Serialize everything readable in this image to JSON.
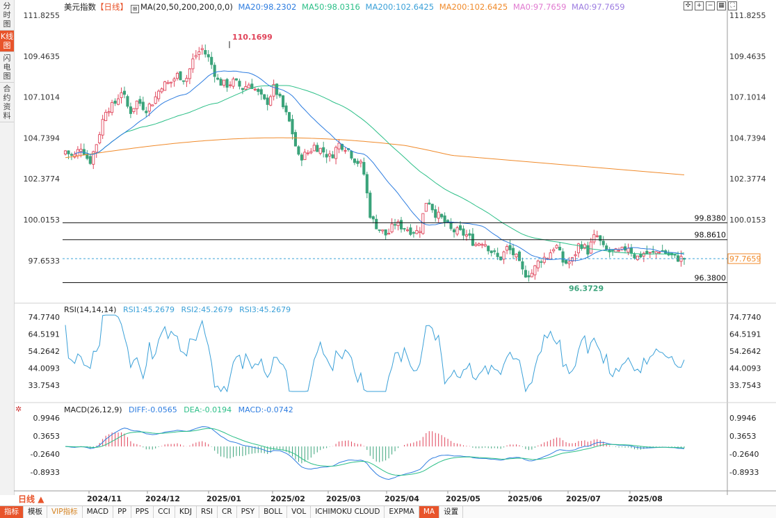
{
  "side_tabs": [
    "分时图",
    "K线图",
    "闪电图",
    "合约资料"
  ],
  "header": {
    "symbol": "美元指数",
    "period": "【日线】",
    "ma_params": "MA(20,50,200,200,0,0)",
    "ma20": "MA20:98.2302",
    "ma50": "MA50:98.0316",
    "ma200": "MA200:102.6425",
    "ma200b": "MA200:102.6425",
    "ma0a": "MA0:97.7659",
    "ma0b": "MA0:97.7659"
  },
  "colors": {
    "up": "#e0445a",
    "down": "#3aa37a",
    "ma20": "#2e7de0",
    "ma50": "#2bbf87",
    "ma200": "#f08a2a",
    "ma0a": "#e07ad0",
    "ma0b": "#9b7be0",
    "rsi": "#3aa0d8",
    "diff": "#2e7de0",
    "dea": "#2bbf87",
    "price_tag": "#f08a2a"
  },
  "price_axis_ticks": [
    "111.8255",
    "109.4635",
    "107.1014",
    "104.7394",
    "102.3774",
    "100.0153",
    "97.6533"
  ],
  "price_axis_values": [
    111.8255,
    109.4635,
    107.1014,
    104.7394,
    102.3774,
    100.0153,
    97.6533
  ],
  "annotations": {
    "high_label": "110.1699",
    "low_label": "96.3729",
    "line1_label": "99.8380",
    "line2_label": "98.8610",
    "line3_label": "96.3800",
    "last_price_tag": "97.7659"
  },
  "rsi": {
    "title": "RSI(14,14,14)",
    "rsi1": "RSI1:45.2679",
    "rsi2": "RSI2:45.2679",
    "rsi3": "RSI3:45.2679",
    "ticks": [
      "74.7740",
      "64.5191",
      "54.2642",
      "44.0093",
      "33.7543"
    ],
    "tick_values": [
      74.774,
      64.5191,
      54.2642,
      44.0093,
      33.7543
    ]
  },
  "macd": {
    "title": "MACD(26,12,9)",
    "diff": "DIFF:-0.0565",
    "dea": "DEA:-0.0194",
    "macd": "MACD:-0.0742",
    "ticks": [
      "0.9946",
      "0.3653",
      "-0.2640",
      "-0.8933"
    ],
    "tick_values": [
      0.9946,
      0.3653,
      -0.264,
      -0.8933
    ]
  },
  "x_axis_labels": [
    "2024/11",
    "2024/12",
    "2025/01",
    "2025/02",
    "2025/03",
    "2025/04",
    "2025/05",
    "2025/06",
    "2025/07",
    "2025/08"
  ],
  "period_button": "日线",
  "bottom_tabs": [
    "指标",
    "模板",
    "VIP指标",
    "MACD",
    "PP",
    "PPS",
    "CCI",
    "KDJ",
    "RSI",
    "CR",
    "PSY",
    "BOLL",
    "VOL",
    "ICHIMOKU CLOUD",
    "EXPMA",
    "MA",
    "设置"
  ],
  "chart_data": {
    "type": "candlestick",
    "title": "美元指数 【日线】",
    "x_range": [
      "2024/10",
      "2025/08"
    ],
    "ylim": [
      95.8,
      111.9
    ],
    "grid": false,
    "key_points": {
      "high": 110.1699,
      "low": 96.3729,
      "last": 97.7659
    },
    "horizontal_levels": [
      99.838,
      98.861,
      96.38
    ],
    "close_path_approx": [
      104.0,
      103.6,
      104.3,
      103.3,
      104.6,
      106.4,
      106.6,
      107.5,
      106.2,
      106.9,
      106.4,
      106.9,
      107.8,
      107.9,
      108.4,
      108.1,
      109.4,
      109.9,
      109.2,
      108.0,
      107.8,
      108.0,
      107.6,
      107.9,
      107.3,
      106.7,
      107.7,
      106.6,
      105.5,
      103.6,
      103.8,
      104.3,
      104.0,
      103.6,
      104.4,
      104.2,
      103.5,
      103.1,
      100.1,
      99.5,
      99.1,
      99.8,
      99.6,
      99.4,
      99.3,
      101.3,
      100.4,
      100.0,
      99.4,
      99.3,
      99.1,
      98.6,
      98.8,
      98.2,
      97.7,
      98.4,
      97.9,
      96.9,
      96.9,
      97.7,
      97.9,
      98.6,
      97.5,
      97.6,
      98.7,
      98.2,
      99.2,
      98.3,
      98.1,
      98.1,
      98.5,
      97.8,
      98.1,
      98.0,
      98.3,
      98.0,
      97.8,
      97.7659
    ]
  }
}
